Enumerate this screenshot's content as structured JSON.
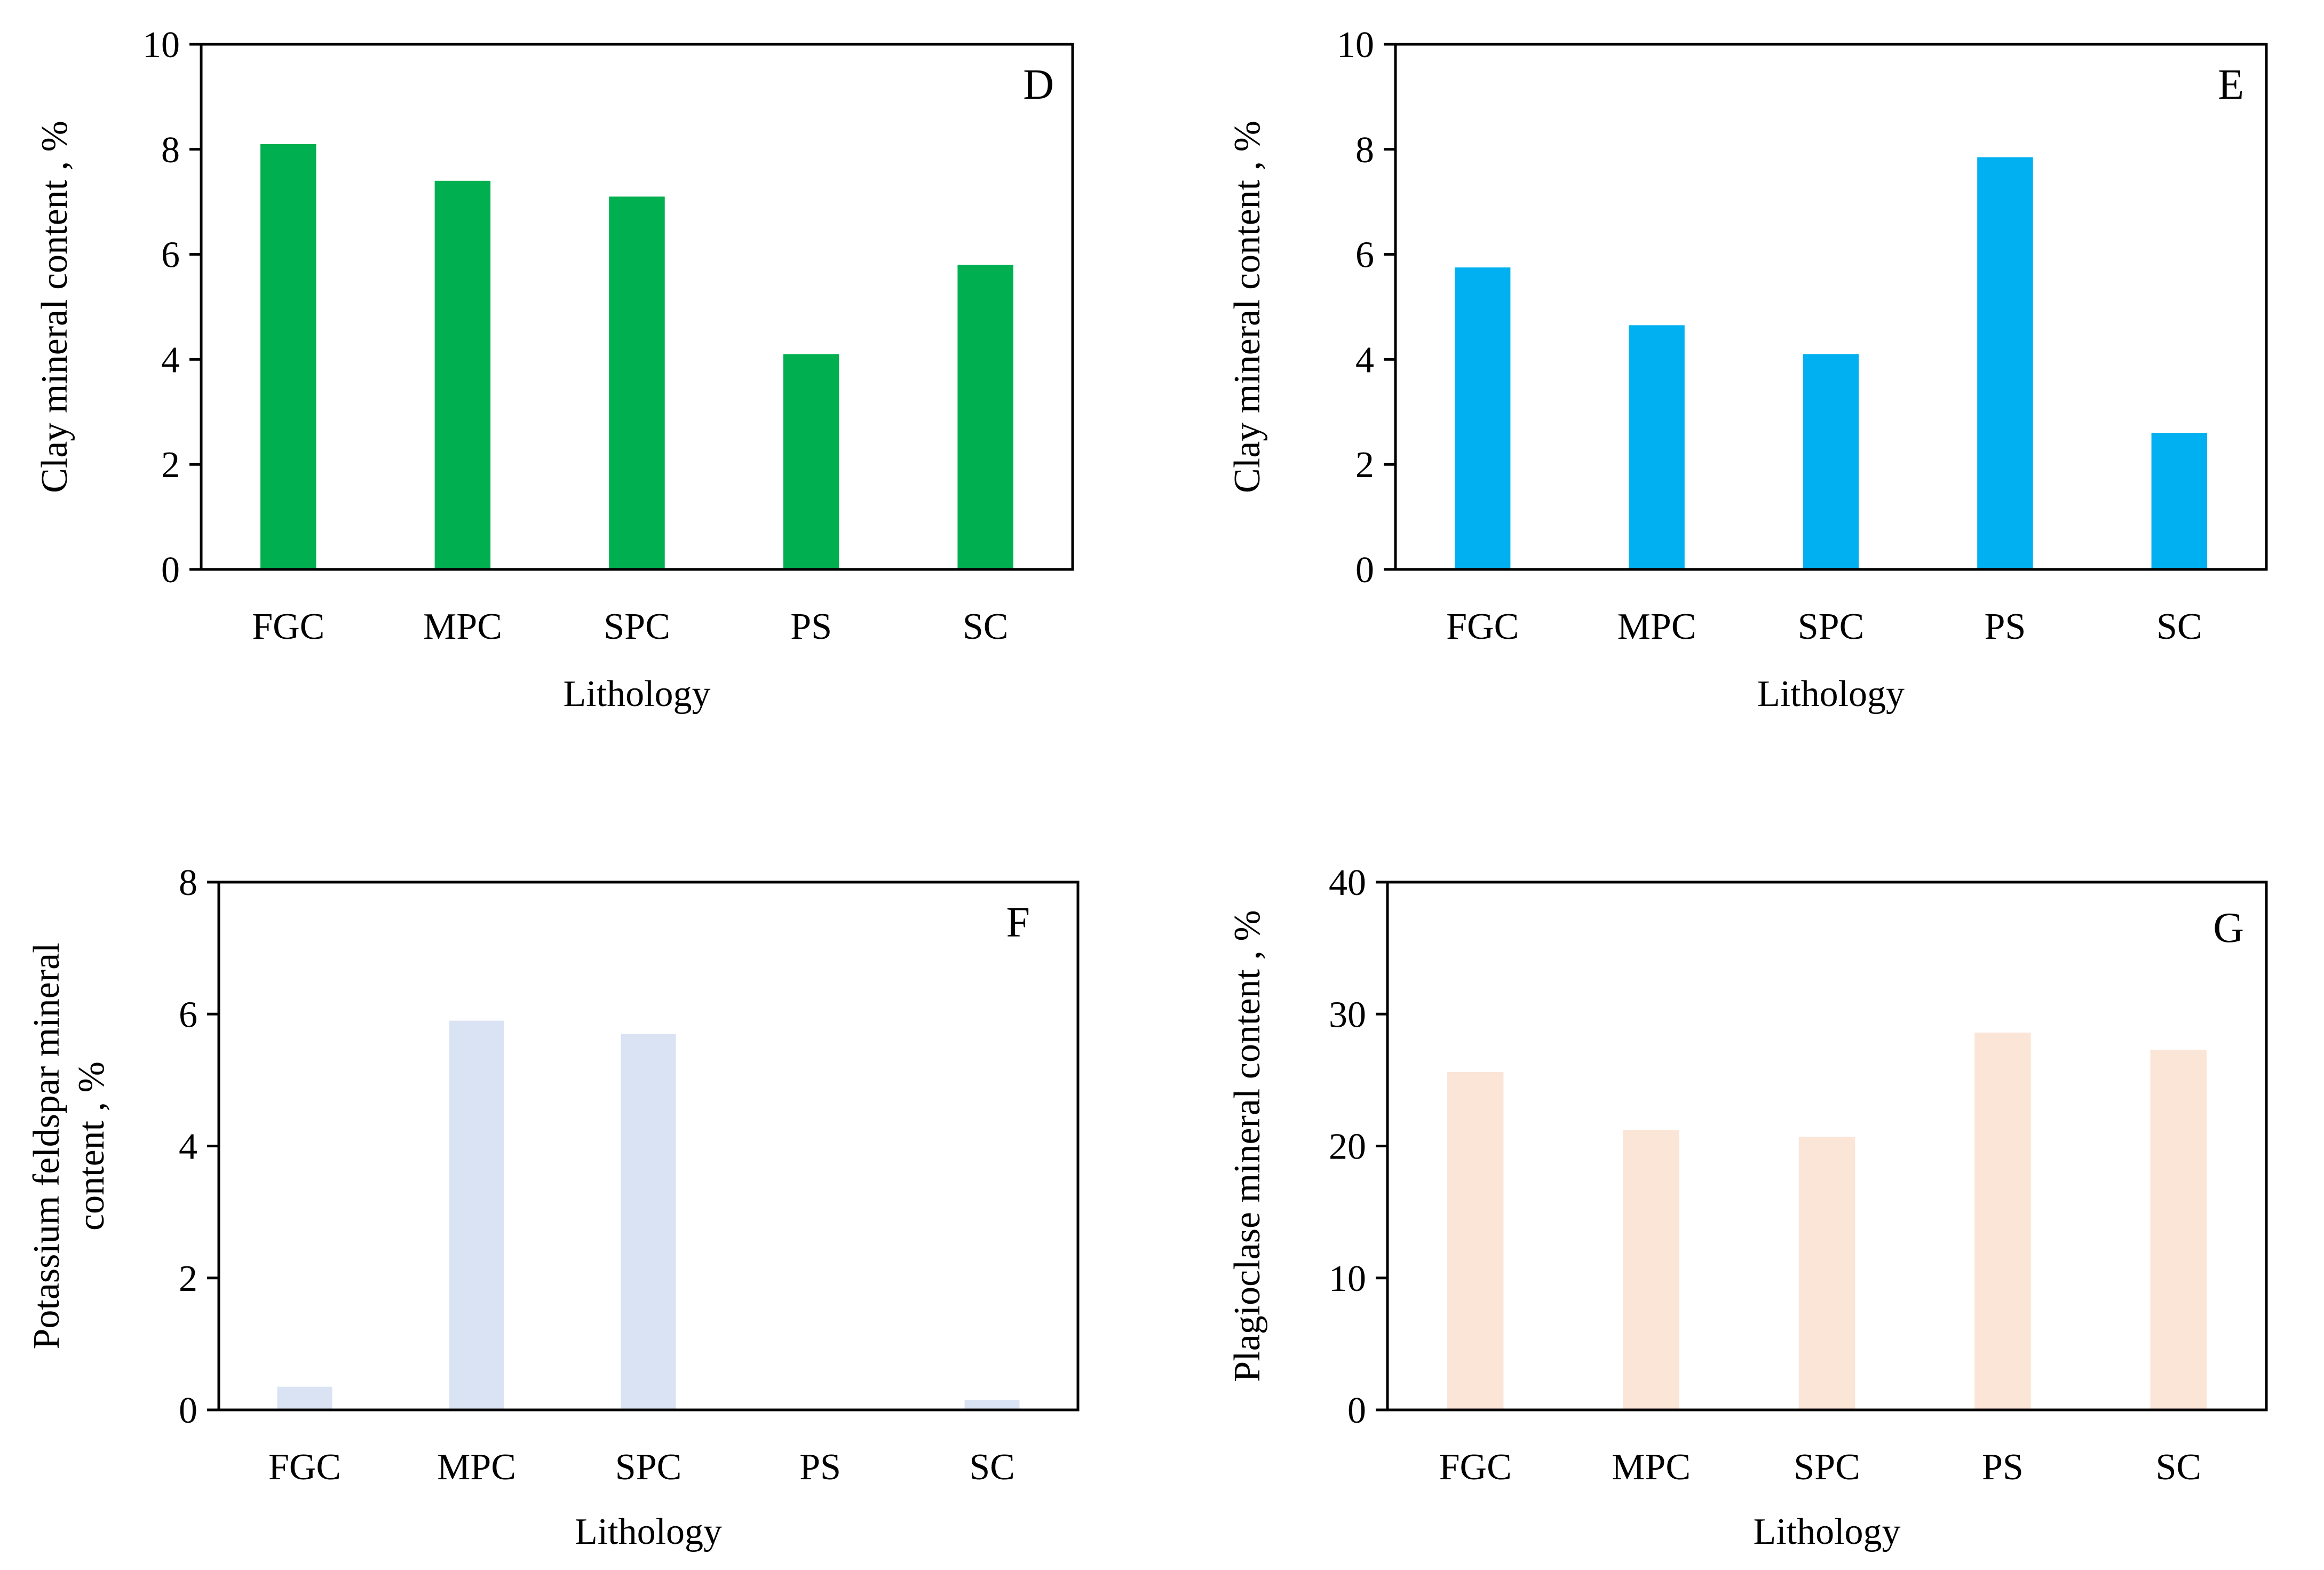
{
  "chart_data": [
    {
      "type": "bar",
      "panel": "D",
      "categories": [
        "FGC",
        "MPC",
        "SPC",
        "PS",
        "SC"
      ],
      "values": [
        8.1,
        7.4,
        7.1,
        4.1,
        5.8
      ],
      "xlabel": "Lithology",
      "ylabel": [
        "Clay mineral content , %"
      ],
      "ylim": [
        0,
        10
      ],
      "yticks": [
        0,
        2,
        4,
        6,
        8,
        10
      ],
      "color": "#00B050",
      "grid": false,
      "legend": "none"
    },
    {
      "type": "bar",
      "panel": "E",
      "categories": [
        "FGC",
        "MPC",
        "SPC",
        "PS",
        "SC"
      ],
      "values": [
        5.75,
        4.65,
        4.1,
        7.85,
        2.6
      ],
      "xlabel": "Lithology",
      "ylabel": [
        "Clay mineral content , %"
      ],
      "ylim": [
        0,
        10
      ],
      "yticks": [
        0,
        2,
        4,
        6,
        8,
        10
      ],
      "color": "#00B0F0",
      "grid": false,
      "legend": "none"
    },
    {
      "type": "bar",
      "panel": "F",
      "categories": [
        "FGC",
        "MPC",
        "SPC",
        "PS",
        "SC"
      ],
      "values": [
        0.35,
        5.9,
        5.7,
        0,
        0.15
      ],
      "xlabel": "Lithology",
      "ylabel": [
        "Potassium feldspar  mineral",
        "content , %"
      ],
      "ylim": [
        0,
        8
      ],
      "yticks": [
        0,
        2,
        4,
        6,
        8
      ],
      "color": "#DAE3F3",
      "grid": false,
      "legend": "none"
    },
    {
      "type": "bar",
      "panel": "G",
      "categories": [
        "FGC",
        "MPC",
        "SPC",
        "PS",
        "SC"
      ],
      "values": [
        25.6,
        21.2,
        20.7,
        28.6,
        27.3
      ],
      "xlabel": "Lithology",
      "ylabel": [
        "Plagioclase mineral content , %"
      ],
      "ylim": [
        0,
        40
      ],
      "yticks": [
        0,
        10,
        20,
        30,
        40
      ],
      "color": "#FBE5D6",
      "grid": false,
      "legend": "none"
    }
  ]
}
